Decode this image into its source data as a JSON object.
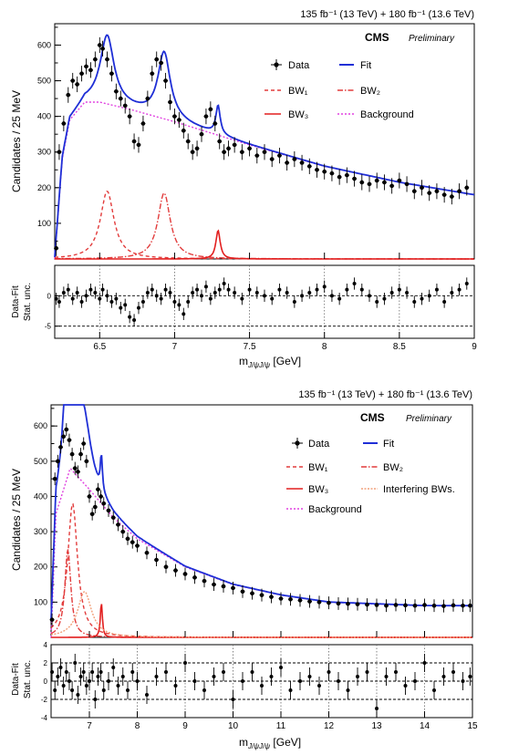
{
  "colors": {
    "data": "#000000",
    "fit": "#1f2fd6",
    "bw1": "#e23b3b",
    "bw2": "#e23b3b",
    "bw3": "#e21f1f",
    "interfering": "#f2a07a",
    "background": "#e040e0",
    "refline": "#000000"
  },
  "chart_data": [
    {
      "type": "scatter",
      "lumi": "135 fb⁻¹ (13 TeV) + 180 fb⁻¹ (13.6 TeV)",
      "experiment": "CMS",
      "status": "Preliminary",
      "ylabel": "Candidates / 25 MeV",
      "xlim": [
        6.2,
        9.0
      ],
      "ylim": [
        0,
        660
      ],
      "yticks": [
        "100",
        "200",
        "300",
        "400",
        "500",
        "600"
      ],
      "legend": [
        {
          "key": "data",
          "label": "Data"
        },
        {
          "key": "fit",
          "label": "Fit"
        },
        {
          "key": "bw1",
          "label": "BW₁"
        },
        {
          "key": "bw2",
          "label": "BW₂"
        },
        {
          "key": "bw3",
          "label": "BW₃"
        },
        {
          "key": "background",
          "label": "Background"
        }
      ],
      "peaks": [
        {
          "name": "BW1",
          "mass": 6.55,
          "width": 0.11,
          "amplitude": 190
        },
        {
          "name": "BW2",
          "mass": 6.93,
          "width": 0.1,
          "amplitude": 185
        },
        {
          "name": "BW3",
          "mass": 7.29,
          "width": 0.035,
          "amplitude": 80
        }
      ],
      "background": {
        "x": [
          6.2,
          6.25,
          6.3,
          6.4,
          6.5,
          6.7,
          7.0,
          7.5,
          8.0,
          8.5,
          9.0
        ],
        "y": [
          0,
          280,
          390,
          440,
          440,
          420,
          385,
          320,
          260,
          215,
          180
        ]
      },
      "data_points": {
        "x": [
          6.21,
          6.23,
          6.26,
          6.29,
          6.32,
          6.35,
          6.38,
          6.41,
          6.44,
          6.47,
          6.5,
          6.52,
          6.55,
          6.58,
          6.61,
          6.64,
          6.67,
          6.7,
          6.73,
          6.76,
          6.79,
          6.82,
          6.85,
          6.88,
          6.91,
          6.94,
          6.97,
          7.0,
          7.03,
          7.06,
          7.09,
          7.12,
          7.15,
          7.18,
          7.21,
          7.24,
          7.27,
          7.3,
          7.33,
          7.36,
          7.4,
          7.45,
          7.5,
          7.55,
          7.6,
          7.65,
          7.7,
          7.75,
          7.8,
          7.85,
          7.9,
          7.95,
          8.0,
          8.05,
          8.1,
          8.15,
          8.2,
          8.25,
          8.3,
          8.35,
          8.4,
          8.45,
          8.5,
          8.55,
          8.6,
          8.65,
          8.7,
          8.75,
          8.8,
          8.85,
          8.9,
          8.95
        ],
        "y": [
          30,
          300,
          380,
          460,
          500,
          490,
          520,
          540,
          530,
          560,
          600,
          590,
          560,
          520,
          470,
          450,
          430,
          400,
          330,
          320,
          380,
          450,
          520,
          560,
          550,
          500,
          440,
          400,
          390,
          360,
          330,
          300,
          310,
          350,
          400,
          420,
          380,
          330,
          300,
          310,
          320,
          300,
          310,
          290,
          300,
          280,
          290,
          270,
          280,
          270,
          260,
          250,
          245,
          240,
          230,
          235,
          225,
          215,
          210,
          220,
          215,
          205,
          220,
          210,
          190,
          200,
          185,
          190,
          180,
          175,
          190,
          200
        ],
        "err": 22
      },
      "residuals": {
        "ylim": [
          -7,
          5
        ],
        "yticks": [
          "-5",
          "0"
        ],
        "ylabel_line1": "Data-Fit",
        "ylabel_line2": "Stat. unc.",
        "reflines": [
          0,
          -5
        ],
        "y": [
          -0.5,
          -1,
          0.5,
          1,
          -0.5,
          0.5,
          -1,
          0,
          1,
          0.5,
          -0.5,
          1,
          0,
          -1,
          -0.5,
          -2,
          -1.5,
          -3.5,
          -4,
          -2,
          -1,
          0.5,
          1,
          0,
          -0.5,
          1,
          0.5,
          -1,
          -1.5,
          -3,
          -1,
          0.5,
          1,
          0,
          1.5,
          -0.5,
          0.5,
          1,
          2,
          1,
          0.5,
          -0.5,
          1,
          0.5,
          0,
          -0.5,
          1,
          0.5,
          -1,
          0,
          0.5,
          1,
          1.5,
          0,
          -0.5,
          1,
          2,
          1,
          0,
          -1,
          -0.5,
          0.5,
          1,
          0.5,
          -1,
          -0.5,
          0,
          1,
          -1,
          0.5,
          1,
          2
        ],
        "err": 1
      },
      "xticks": [
        "6.5",
        "7",
        "7.5",
        "8",
        "8.5",
        "9"
      ],
      "xlabel": "m",
      "xlabel_sub": "J/ψJ/ψ",
      "xlabel_unit": "[GeV]"
    },
    {
      "type": "scatter",
      "lumi": "135 fb⁻¹ (13 TeV) + 180 fb⁻¹ (13.6 TeV)",
      "experiment": "CMS",
      "status": "Preliminary",
      "ylabel": "Candidates / 25 MeV",
      "xlim": [
        6.2,
        15
      ],
      "ylim": [
        0,
        660
      ],
      "yticks": [
        "100",
        "200",
        "300",
        "400",
        "500",
        "600"
      ],
      "legend": [
        {
          "key": "data",
          "label": "Data"
        },
        {
          "key": "fit",
          "label": "Fit"
        },
        {
          "key": "bw1",
          "label": "BW₁"
        },
        {
          "key": "bw2",
          "label": "BW₂"
        },
        {
          "key": "bw3",
          "label": "BW₃"
        },
        {
          "key": "interfering",
          "label": "Interfering BWs."
        },
        {
          "key": "background",
          "label": "Background"
        }
      ],
      "peaks": [
        {
          "name": "BW1",
          "mass": 6.65,
          "width": 0.25,
          "amplitude": 380
        },
        {
          "name": "BW2",
          "mass": 6.55,
          "width": 0.15,
          "amplitude": 250
        },
        {
          "name": "BW3",
          "mass": 7.25,
          "width": 0.05,
          "amplitude": 100
        },
        {
          "name": "Interfering",
          "mass": 6.9,
          "width": 0.35,
          "amplitude": 130
        }
      ],
      "background": {
        "x": [
          6.2,
          6.3,
          6.6,
          7.0,
          7.5,
          8.0,
          9.0,
          10.0,
          11.0,
          12.0,
          13.0,
          14.0,
          15.0
        ],
        "y": [
          0,
          350,
          480,
          420,
          340,
          280,
          200,
          150,
          120,
          100,
          95,
          90,
          90
        ]
      },
      "data_points": {
        "x": [
          6.22,
          6.28,
          6.34,
          6.4,
          6.46,
          6.52,
          6.58,
          6.64,
          6.7,
          6.76,
          6.82,
          6.88,
          6.94,
          7.0,
          7.06,
          7.12,
          7.18,
          7.24,
          7.3,
          7.4,
          7.5,
          7.6,
          7.7,
          7.8,
          7.9,
          8.0,
          8.2,
          8.4,
          8.6,
          8.8,
          9.0,
          9.2,
          9.4,
          9.6,
          9.8,
          10.0,
          10.2,
          10.4,
          10.6,
          10.8,
          11.0,
          11.2,
          11.4,
          11.6,
          11.8,
          12.0,
          12.2,
          12.4,
          12.6,
          12.8,
          13.0,
          13.2,
          13.4,
          13.6,
          13.8,
          14.0,
          14.2,
          14.4,
          14.6,
          14.8,
          14.95
        ],
        "y": [
          50,
          450,
          500,
          540,
          570,
          590,
          560,
          520,
          480,
          470,
          520,
          550,
          500,
          400,
          350,
          370,
          420,
          400,
          380,
          360,
          340,
          320,
          300,
          280,
          270,
          260,
          240,
          220,
          200,
          190,
          180,
          170,
          160,
          150,
          145,
          140,
          130,
          125,
          120,
          115,
          110,
          108,
          105,
          102,
          100,
          98,
          96,
          95,
          94,
          93,
          92,
          90,
          92,
          91,
          90,
          92,
          90,
          89,
          91,
          90,
          90
        ],
        "err": 18
      },
      "residuals": {
        "ylim": [
          -4,
          4
        ],
        "yticks": [
          "-4",
          "-2",
          "0",
          "2",
          "4"
        ],
        "ylabel_line1": "Data-Fit",
        "ylabel_line2": "Stat. unc.",
        "reflines": [
          0,
          2,
          -2
        ],
        "y": [
          1,
          -1,
          0.5,
          1.5,
          -0.5,
          1,
          0,
          -1,
          2,
          -1.5,
          0.5,
          1,
          -0.5,
          0,
          1,
          -2,
          0.5,
          1,
          -1,
          0,
          1.5,
          -0.5,
          0.5,
          -1,
          1,
          0,
          -1.5,
          0.5,
          1,
          -0.5,
          2,
          0,
          -1,
          0.5,
          1,
          -2,
          0,
          1,
          -0.5,
          0.5,
          1.5,
          -1,
          0,
          0.5,
          -0.5,
          1,
          0,
          -1,
          0.5,
          1,
          -3,
          0.5,
          1,
          -0.5,
          0,
          2,
          -1,
          0.5,
          1,
          0,
          0.5
        ],
        "err": 1
      },
      "xticks": [
        "7",
        "8",
        "9",
        "10",
        "11",
        "12",
        "13",
        "14",
        "15"
      ],
      "xlabel": "m",
      "xlabel_sub": "J/ψJ/ψ",
      "xlabel_unit": "[GeV]"
    }
  ]
}
